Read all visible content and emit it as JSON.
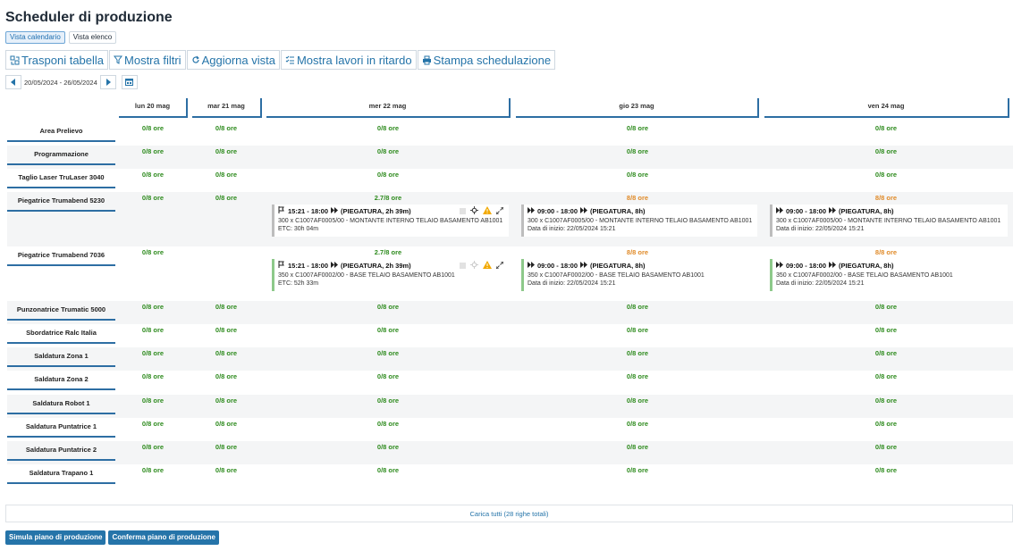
{
  "page": {
    "title": "Scheduler di produzione"
  },
  "views": {
    "calendar": "Vista calendario",
    "list": "Vista elenco"
  },
  "toolbar": {
    "transpose": "Trasponi tabella",
    "filters": "Mostra filtri",
    "refresh": "Aggiorna vista",
    "late": "Mostra lavori in ritardo",
    "print": "Stampa schedulazione"
  },
  "date_nav": {
    "range": "20/05/2024 - 26/05/2024"
  },
  "days": [
    "lun 20 mag",
    "mar 21 mag",
    "mer 22 mag",
    "gio 23 mag",
    "ven 24 mag"
  ],
  "colors": {
    "accent": "#2574a9",
    "ok": "#2e8b1e",
    "warn": "#e08b2a",
    "alert": "#f2a900"
  },
  "rows": [
    {
      "name": "Area Prelievo",
      "hours": [
        "0/8 ore",
        "0/8 ore",
        "0/8 ore",
        "0/8 ore",
        "0/8 ore"
      ],
      "levels": [
        "ok",
        "ok",
        "ok",
        "ok",
        "ok"
      ]
    },
    {
      "name": "Programmazione",
      "hours": [
        "0/8 ore",
        "0/8 ore",
        "0/8 ore",
        "0/8 ore",
        "0/8 ore"
      ],
      "levels": [
        "ok",
        "ok",
        "ok",
        "ok",
        "ok"
      ]
    },
    {
      "name": "Taglio Laser TruLaser 3040",
      "hours": [
        "0/8 ore",
        "0/8 ore",
        "0/8 ore",
        "0/8 ore",
        "0/8 ore"
      ],
      "levels": [
        "ok",
        "ok",
        "ok",
        "ok",
        "ok"
      ]
    },
    {
      "name": "Piegatrice Trumabend 5230",
      "hours": [
        "0/8 ore",
        "0/8 ore",
        "2.7/8 ore",
        "8/8 ore",
        "8/8 ore"
      ],
      "levels": [
        "ok",
        "ok",
        "ok",
        "warn",
        "warn"
      ],
      "jobs": [
        {
          "time": "15:21 - 18:00",
          "op": "(PIEGATURA, 2h 39m)",
          "desc": "300 x C1007AF0005/00 - MONTANTE INTERNO TELAIO BASAMENTO AB1001",
          "extra": "ETC: 30h 04m",
          "icons": true,
          "bar": "grey"
        },
        {
          "time": "09:00 - 18:00",
          "op": "(PIEGATURA, 8h)",
          "desc": "300 x C1007AF0005/00 - MONTANTE INTERNO TELAIO BASAMENTO AB1001",
          "extra": "Data di inizio: 22/05/2024 15:21",
          "icons": false,
          "bar": "grey"
        },
        {
          "time": "09:00 - 18:00",
          "op": "(PIEGATURA, 8h)",
          "desc": "300 x C1007AF0005/00 - MONTANTE INTERNO TELAIO BASAMENTO AB1001",
          "extra": "Data di inizio: 22/05/2024 15:21",
          "icons": false,
          "bar": "grey"
        }
      ]
    },
    {
      "name": "Piegatrice Trumabend 7036",
      "hours": [
        "0/8 ore",
        "",
        "2.7/8 ore",
        "8/8 ore",
        "8/8 ore"
      ],
      "levels": [
        "ok",
        "ok",
        "ok",
        "warn",
        "warn"
      ],
      "jobs": [
        {
          "time": "15:21 - 18:00",
          "op": "(PIEGATURA, 2h 39m)",
          "desc": "350 x C1007AF0002/00 - BASE TELAIO BASAMENTO AB1001",
          "extra": "ETC: 52h 33m",
          "icons": true,
          "bar": "green"
        },
        {
          "time": "09:00 - 18:00",
          "op": "(PIEGATURA, 8h)",
          "desc": "350 x C1007AF0002/00 - BASE TELAIO BASAMENTO AB1001",
          "extra": "Data di inizio: 22/05/2024 15:21",
          "icons": false,
          "bar": "green"
        },
        {
          "time": "09:00 - 18:00",
          "op": "(PIEGATURA, 8h)",
          "desc": "350 x C1007AF0002/00 - BASE TELAIO BASAMENTO AB1001",
          "extra": "Data di inizio: 22/05/2024 15:21",
          "icons": false,
          "bar": "green"
        }
      ]
    },
    {
      "name": "Punzonatrice Trumatic 5000",
      "hours": [
        "0/8 ore",
        "0/8 ore",
        "0/8 ore",
        "0/8 ore",
        "0/8 ore"
      ],
      "levels": [
        "ok",
        "ok",
        "ok",
        "ok",
        "ok"
      ]
    },
    {
      "name": "Sbordatrice Ralc Italia",
      "hours": [
        "0/8 ore",
        "0/8 ore",
        "0/8 ore",
        "0/8 ore",
        "0/8 ore"
      ],
      "levels": [
        "ok",
        "ok",
        "ok",
        "ok",
        "ok"
      ]
    },
    {
      "name": "Saldatura Zona 1",
      "hours": [
        "0/8 ore",
        "0/8 ore",
        "0/8 ore",
        "0/8 ore",
        "0/8 ore"
      ],
      "levels": [
        "ok",
        "ok",
        "ok",
        "ok",
        "ok"
      ]
    },
    {
      "name": "Saldatura Zona 2",
      "hours": [
        "0/8 ore",
        "0/8 ore",
        "0/8 ore",
        "0/8 ore",
        "0/8 ore"
      ],
      "levels": [
        "ok",
        "ok",
        "ok",
        "ok",
        "ok"
      ]
    },
    {
      "name": "Saldatura Robot 1",
      "hours": [
        "0/8 ore",
        "0/8 ore",
        "0/8 ore",
        "0/8 ore",
        "0/8 ore"
      ],
      "levels": [
        "ok",
        "ok",
        "ok",
        "ok",
        "ok"
      ]
    },
    {
      "name": "Saldatura Puntatrice 1",
      "hours": [
        "0/8 ore",
        "0/8 ore",
        "0/8 ore",
        "0/8 ore",
        "0/8 ore"
      ],
      "levels": [
        "ok",
        "ok",
        "ok",
        "ok",
        "ok"
      ]
    },
    {
      "name": "Saldatura Puntatrice 2",
      "hours": [
        "0/8 ore",
        "0/8 ore",
        "0/8 ore",
        "0/8 ore",
        "0/8 ore"
      ],
      "levels": [
        "ok",
        "ok",
        "ok",
        "ok",
        "ok"
      ]
    },
    {
      "name": "Saldatura Trapano 1",
      "hours": [
        "0/8 ore",
        "0/8 ore",
        "0/8 ore",
        "0/8 ore",
        "0/8 ore"
      ],
      "levels": [
        "ok",
        "ok",
        "ok",
        "ok",
        "ok"
      ]
    }
  ],
  "load_all": "Carica tutti (28 righe totali)",
  "footer": {
    "simulate": "Simula piano di produzione",
    "confirm": "Conferma piano di produzione"
  }
}
